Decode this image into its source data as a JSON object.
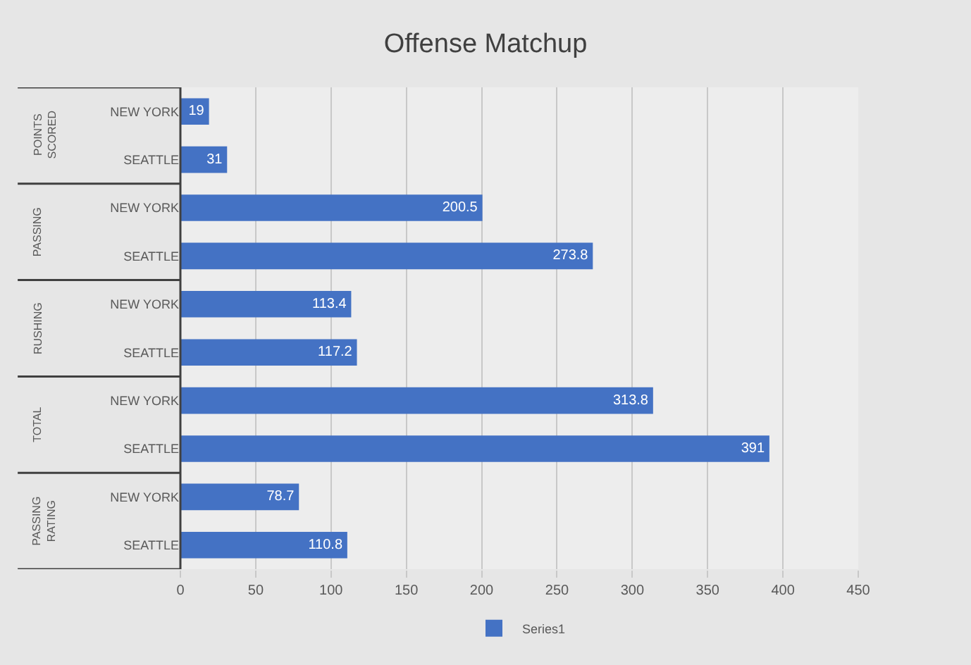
{
  "chart_data": {
    "type": "bar",
    "title": "Offense Matchup",
    "orientation": "horizontal",
    "categories": [
      "NEW YORK",
      "SEATTLE",
      "NEW YORK",
      "SEATTLE",
      "NEW YORK",
      "SEATTLE",
      "NEW YORK",
      "SEATTLE",
      "NEW YORK",
      "SEATTLE"
    ],
    "annotations": [
      "POINTS SCORED",
      "PASSING",
      "RUSHING",
      "TOTAL",
      "PASSING RATING"
    ],
    "series": [
      {
        "name": "Series1",
        "color": "#4472c4",
        "values": [
          19,
          31,
          200.5,
          273.8,
          113.4,
          117.2,
          313.8,
          391,
          78.7,
          110.8
        ]
      }
    ],
    "xlim": [
      0,
      450
    ],
    "xticks": [
      0,
      50,
      100,
      150,
      200,
      250,
      300,
      350,
      400,
      450
    ],
    "grid": "x",
    "legend": "bottom",
    "data_labels": true
  }
}
